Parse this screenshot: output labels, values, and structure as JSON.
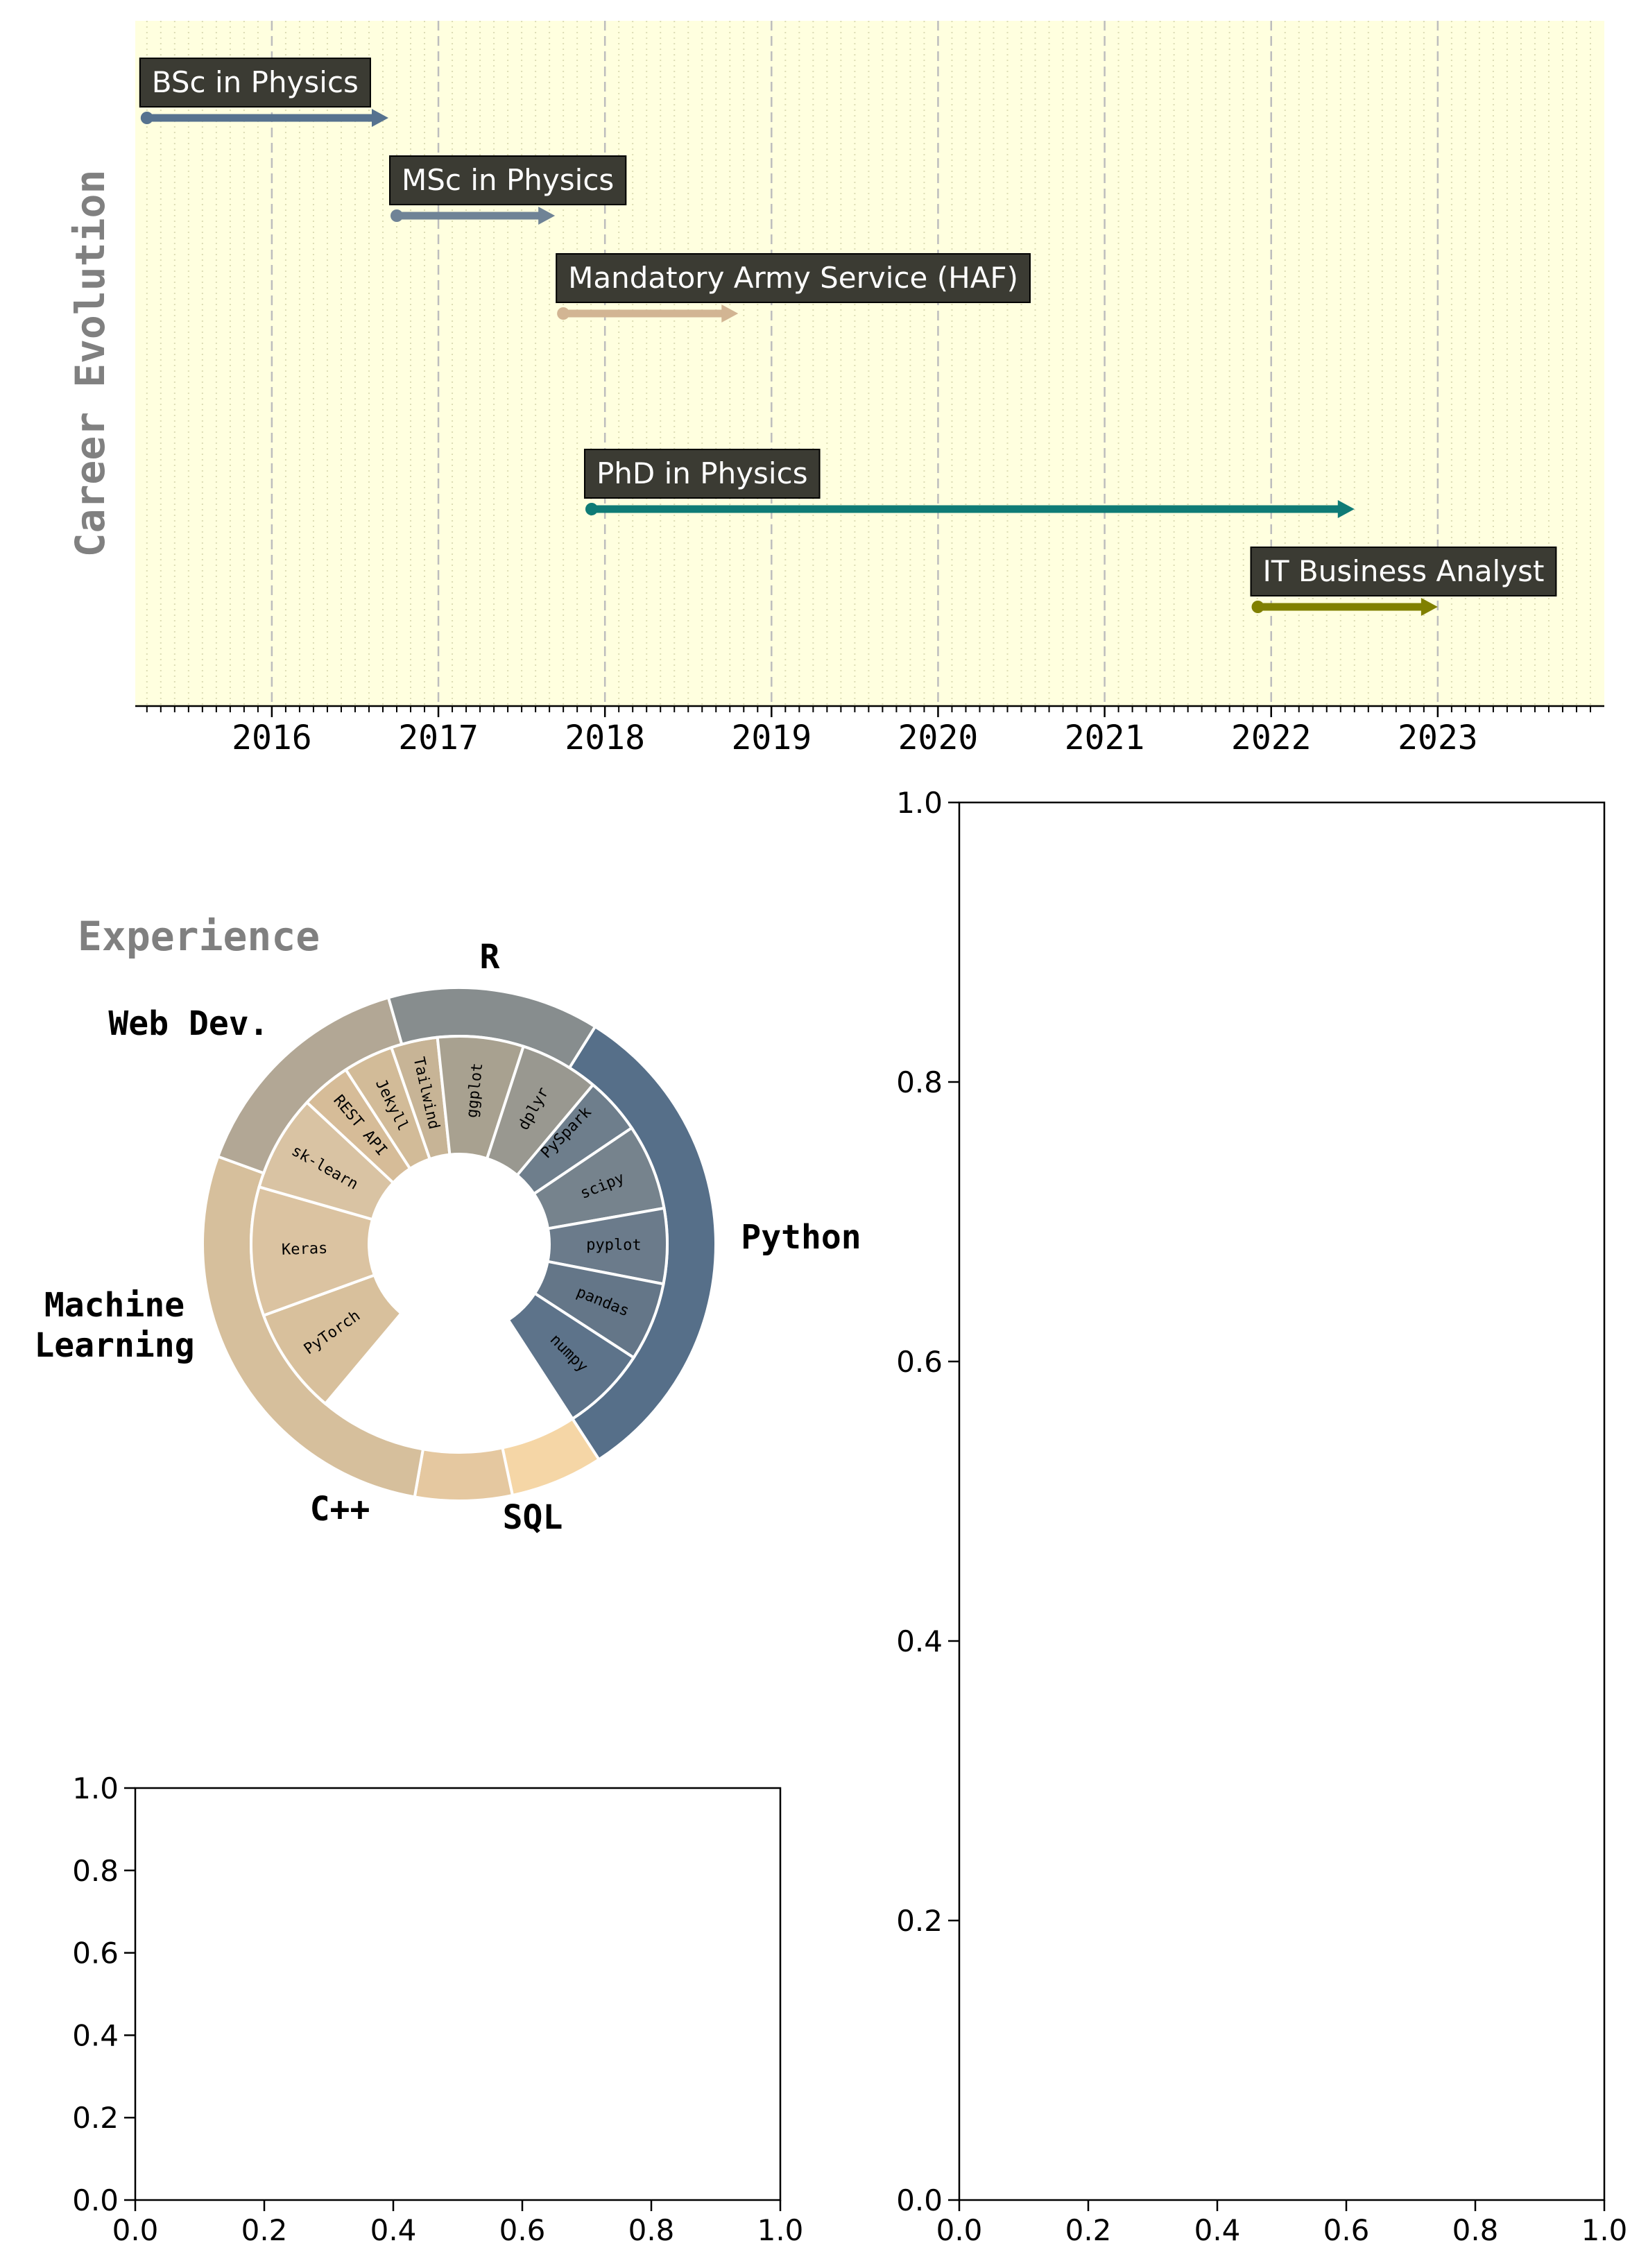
{
  "colors": {
    "timeline_bg": "#ffffdf",
    "timeline_grid_minor": "#dcdcb4",
    "timeline_grid_major": "#bdbdbd",
    "label_box": "#3b3b33",
    "label_text": "#ffffff",
    "title_gray": "#808080"
  },
  "chart_data": [
    {
      "type": "timeline",
      "ylabel": "Career Evolution",
      "xlim": [
        2015.18,
        2024.0
      ],
      "x_ticks": [
        "2016",
        "2017",
        "2018",
        "2019",
        "2020",
        "2021",
        "2022",
        "2023"
      ],
      "grid": {
        "major_x": "dashed",
        "minor_x": "dotted"
      },
      "events": [
        {
          "label": "BSc in Physics",
          "start": 2015.25,
          "end": 2016.7,
          "level": 5,
          "color": "#56728f"
        },
        {
          "label": "MSc in Physics",
          "start": 2016.75,
          "end": 2017.7,
          "level": 4,
          "color": "#6f8396"
        },
        {
          "label": "Mandatory Army Service (HAF)",
          "start": 2017.75,
          "end": 2018.8,
          "level": 3,
          "color": "#d2b593"
        },
        {
          "label": "PhD in Physics",
          "start": 2017.92,
          "end": 2022.5,
          "level": 1,
          "color": "#0f7b76"
        },
        {
          "label": "IT Business Analyst",
          "start": 2021.92,
          "end": 2023.0,
          "level": 0,
          "color": "#808000"
        }
      ]
    },
    {
      "type": "sunburst",
      "title": "Experience",
      "groups": [
        {
          "name": "Python",
          "color": "#566f89",
          "children": [
            {
              "name": "PySpark",
              "color": "#6e7e8c"
            },
            {
              "name": "scipy",
              "color": "#76838d"
            },
            {
              "name": "pyplot",
              "color": "#6b7b8b"
            },
            {
              "name": "pandas",
              "color": "#647688"
            },
            {
              "name": "numpy",
              "color": "#5d738a"
            }
          ]
        },
        {
          "name": "SQL",
          "color": "#f5d6a6",
          "children": []
        },
        {
          "name": "C++",
          "color": "#e5c8a0",
          "children": []
        },
        {
          "name": "Machine Learning",
          "color": "#d6bf9c",
          "children": [
            {
              "name": "PyTorch",
              "color": "#d8c09c"
            },
            {
              "name": "Keras",
              "color": "#dbc3a1"
            },
            {
              "name": "sk-learn",
              "color": "#d9c3a3"
            }
          ]
        },
        {
          "name": "Web Dev.",
          "color": "#b2a795",
          "children": [
            {
              "name": "REST API",
              "color": "#d6bc98"
            },
            {
              "name": "Jekyll",
              "color": "#d2bb98"
            },
            {
              "name": "Tailwind",
              "color": "#c7b496"
            }
          ]
        },
        {
          "name": "R",
          "color": "#878d8e",
          "children": [
            {
              "name": "ggplot",
              "color": "#a8a190"
            },
            {
              "name": "dplyr",
              "color": "#999890"
            }
          ]
        }
      ]
    },
    {
      "type": "empty_axes",
      "xlim": [
        0,
        1
      ],
      "ylim": [
        0,
        1
      ],
      "x_ticks": [
        "0.0",
        "0.2",
        "0.4",
        "0.6",
        "0.8",
        "1.0"
      ],
      "y_ticks": [
        "0.0",
        "0.2",
        "0.4",
        "0.6",
        "0.8",
        "1.0"
      ]
    },
    {
      "type": "empty_axes",
      "xlim": [
        0,
        1
      ],
      "ylim": [
        0,
        1
      ],
      "x_ticks": [
        "0.0",
        "0.2",
        "0.4",
        "0.6",
        "0.8",
        "1.0"
      ],
      "y_ticks": [
        "0.0",
        "0.2",
        "0.4",
        "0.6",
        "0.8",
        "1.0"
      ]
    }
  ]
}
